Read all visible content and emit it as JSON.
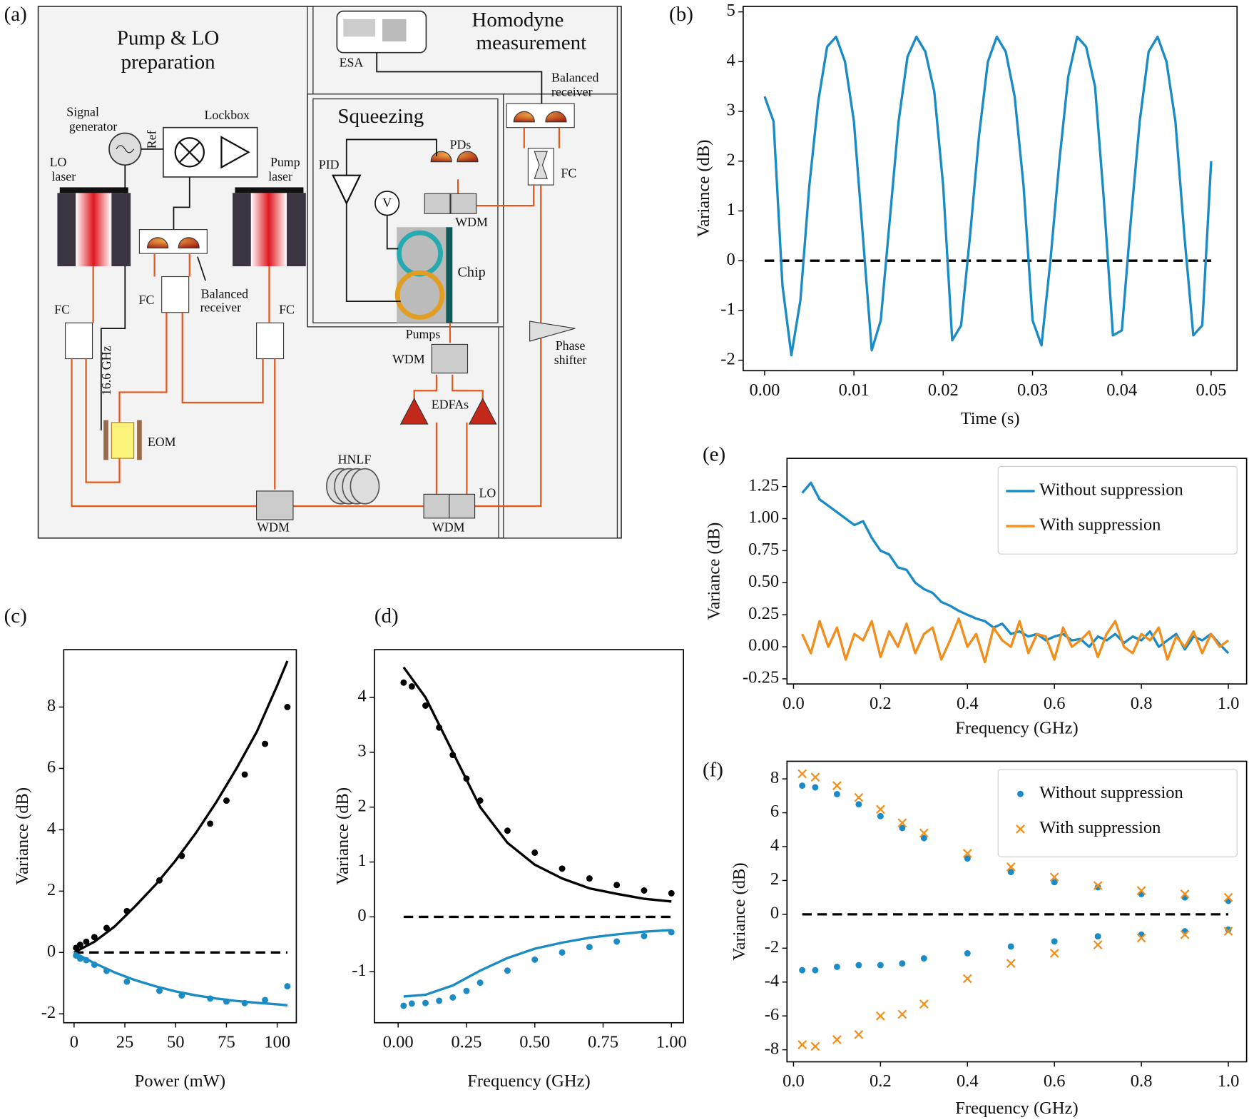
{
  "diagram": {
    "panel": "(a)",
    "labels": [
      "Pump & LO",
      "preparation",
      "Homodyne",
      "measurement",
      "ESA",
      "Balanced",
      "receiver",
      "Squeezing",
      "PDs",
      "PID",
      "V",
      "WDM",
      "Chip",
      "FC",
      "Signal",
      "generator",
      "Lockbox",
      "Ref",
      "LO",
      "laser",
      "Pump",
      "laser",
      "Balanced",
      "receiver",
      "FC",
      "FC",
      "FC",
      "16.6 GHz",
      "EOM",
      "HNLF",
      "Pumps",
      "WDM",
      "EDFAs",
      "Phase",
      "shifter",
      "LO",
      "WDM",
      "WDM"
    ]
  },
  "chart_data": [
    {
      "type": "line",
      "panel": "(b)",
      "x_label": "Time (s)",
      "y_label": "Variance (dB)",
      "x": [
        0,
        0.001,
        0.002,
        0.003,
        0.004,
        0.005,
        0.006,
        0.007,
        0.008,
        0.009,
        0.01,
        0.011,
        0.012,
        0.013,
        0.014,
        0.015,
        0.016,
        0.017,
        0.018,
        0.019,
        0.02,
        0.021,
        0.022,
        0.023,
        0.024,
        0.025,
        0.026,
        0.027,
        0.028,
        0.029,
        0.03,
        0.031,
        0.032,
        0.033,
        0.034,
        0.035,
        0.036,
        0.037,
        0.038,
        0.039,
        0.04,
        0.041,
        0.042,
        0.043,
        0.044,
        0.045,
        0.046,
        0.047,
        0.048,
        0.049,
        0.05
      ],
      "series": [
        {
          "color": "#1a8bc4",
          "style": "line",
          "values": [
            3.3,
            2.8,
            -0.5,
            -1.9,
            -0.8,
            1.5,
            3.2,
            4.3,
            4.5,
            4.0,
            2.8,
            0.5,
            -1.8,
            -1.2,
            0.8,
            2.8,
            4.1,
            4.5,
            4.2,
            3.4,
            1.5,
            -1.6,
            -1.3,
            0.5,
            2.5,
            4.0,
            4.5,
            4.2,
            3.3,
            1.5,
            -1.2,
            -1.7,
            0.0,
            2.0,
            3.7,
            4.5,
            4.3,
            3.5,
            1.2,
            -1.5,
            -1.4,
            0.8,
            2.8,
            4.2,
            4.5,
            4.0,
            2.8,
            0.5,
            -1.5,
            -1.3,
            2.0
          ]
        }
      ],
      "hline": 0,
      "xlim": [
        -0.0024,
        0.0529
      ],
      "ylim": [
        -2.21,
        5.11
      ],
      "xticks": [
        {
          "value": 0,
          "label": "0.00"
        },
        0.01,
        0.02,
        0.03,
        0.04,
        0.05
      ],
      "yticks": [
        -2,
        -1,
        0,
        1,
        2,
        3,
        4,
        5
      ]
    },
    {
      "type": "line",
      "panel": "(c)",
      "x_label": "Power (mW)",
      "y_label": "Variance (dB)",
      "series": [
        {
          "color": "#000000",
          "style": "line",
          "x": [
            0,
            10,
            20,
            30,
            40,
            50,
            60,
            70,
            80,
            90,
            100,
            105
          ],
          "values": [
            0,
            0.35,
            0.85,
            1.5,
            2.2,
            3.0,
            3.9,
            4.9,
            6.0,
            7.2,
            8.7,
            9.5
          ]
        },
        {
          "color": "#1a8bc4",
          "style": "line",
          "x": [
            0,
            10,
            20,
            30,
            40,
            50,
            60,
            70,
            80,
            90,
            100,
            105
          ],
          "values": [
            0,
            -0.35,
            -0.65,
            -0.9,
            -1.1,
            -1.27,
            -1.4,
            -1.5,
            -1.58,
            -1.64,
            -1.69,
            -1.72
          ]
        },
        {
          "color": "#000000",
          "style": "dots",
          "x": [
            1,
            3,
            6,
            10,
            16,
            26,
            42,
            53,
            67,
            75,
            84,
            94,
            105
          ],
          "values": [
            0.15,
            0.25,
            0.35,
            0.5,
            0.8,
            1.35,
            2.35,
            3.15,
            4.2,
            4.95,
            5.8,
            6.8,
            8.0
          ]
        },
        {
          "color": "#1a8bc4",
          "style": "dots",
          "x": [
            1,
            3,
            6,
            10,
            16,
            26,
            42,
            53,
            67,
            75,
            84,
            94,
            105
          ],
          "values": [
            -0.1,
            -0.2,
            -0.25,
            -0.4,
            -0.6,
            -0.95,
            -1.25,
            -1.4,
            -1.5,
            -1.6,
            -1.65,
            -1.55,
            -1.1
          ]
        }
      ],
      "hline": 0,
      "xlim": [
        -5.1,
        109.4
      ],
      "ylim": [
        -2.29,
        9.87
      ],
      "xticks": [
        0,
        25,
        50,
        75,
        100
      ],
      "yticks": [
        -2,
        0,
        2,
        4,
        6,
        8
      ]
    },
    {
      "type": "line",
      "panel": "(d)",
      "x_label": "Frequency (GHz)",
      "y_label": "Variance (dB)",
      "series": [
        {
          "color": "#000000",
          "style": "line",
          "x": [
            0.02,
            0.1,
            0.2,
            0.3,
            0.4,
            0.5,
            0.6,
            0.7,
            0.8,
            0.9,
            1.0
          ],
          "values": [
            4.55,
            4.0,
            3.0,
            2.0,
            1.35,
            0.95,
            0.7,
            0.52,
            0.42,
            0.33,
            0.28
          ]
        },
        {
          "color": "#1a8bc4",
          "style": "line",
          "x": [
            0.02,
            0.1,
            0.2,
            0.3,
            0.4,
            0.5,
            0.6,
            0.7,
            0.8,
            0.9,
            1.0
          ],
          "values": [
            -1.45,
            -1.42,
            -1.25,
            -0.98,
            -0.75,
            -0.58,
            -0.47,
            -0.38,
            -0.32,
            -0.27,
            -0.24
          ]
        },
        {
          "color": "#000000",
          "style": "dots",
          "x": [
            0.02,
            0.05,
            0.1,
            0.15,
            0.2,
            0.25,
            0.3,
            0.4,
            0.5,
            0.6,
            0.7,
            0.8,
            0.9,
            1.0
          ],
          "values": [
            4.27,
            4.2,
            3.85,
            3.45,
            2.95,
            2.52,
            2.12,
            1.57,
            1.17,
            0.88,
            0.7,
            0.58,
            0.48,
            0.43
          ]
        },
        {
          "color": "#1a8bc4",
          "style": "dots",
          "x": [
            0.02,
            0.05,
            0.1,
            0.15,
            0.2,
            0.25,
            0.3,
            0.4,
            0.5,
            0.6,
            0.7,
            0.8,
            0.9,
            1.0
          ],
          "values": [
            -1.62,
            -1.58,
            -1.57,
            -1.53,
            -1.47,
            -1.35,
            -1.2,
            -0.98,
            -0.78,
            -0.65,
            -0.55,
            -0.45,
            -0.35,
            -0.28
          ]
        }
      ],
      "hline": 0,
      "xlim": [
        -0.087,
        1.044
      ],
      "ylim": [
        -1.93,
        4.87
      ],
      "xticks": [
        {
          "value": 0,
          "label": "0.00"
        },
        0.25,
        {
          "value": 0.5,
          "label": "0.50"
        },
        0.75,
        {
          "value": 1,
          "label": "1.00"
        }
      ],
      "yticks": [
        -1,
        0,
        1,
        2,
        3,
        4
      ]
    },
    {
      "type": "line",
      "panel": "(e)",
      "x_label": "Frequency (GHz)",
      "y_label": "Variance (dB)",
      "legend": "upper right",
      "x": [
        0.02,
        0.04,
        0.06,
        0.08,
        0.1,
        0.12,
        0.14,
        0.16,
        0.18,
        0.2,
        0.22,
        0.24,
        0.26,
        0.28,
        0.3,
        0.32,
        0.34,
        0.36,
        0.38,
        0.4,
        0.42,
        0.44,
        0.46,
        0.48,
        0.5,
        0.52,
        0.54,
        0.56,
        0.58,
        0.6,
        0.62,
        0.64,
        0.66,
        0.68,
        0.7,
        0.72,
        0.74,
        0.76,
        0.78,
        0.8,
        0.82,
        0.84,
        0.86,
        0.88,
        0.9,
        0.92,
        0.94,
        0.96,
        0.98,
        1.0
      ],
      "series": [
        {
          "name": "Without suppression",
          "color": "#1a8bc4",
          "style": "line",
          "values": [
            1.2,
            1.28,
            1.15,
            1.1,
            1.05,
            1.0,
            0.95,
            0.98,
            0.85,
            0.75,
            0.72,
            0.62,
            0.6,
            0.5,
            0.45,
            0.42,
            0.35,
            0.32,
            0.28,
            0.25,
            0.22,
            0.2,
            0.15,
            0.18,
            0.1,
            0.12,
            0.08,
            0.1,
            0.05,
            0.08,
            0.1,
            0.05,
            0.06,
            0.0,
            0.08,
            0.05,
            0.1,
            0.03,
            0.08,
            0.05,
            0.12,
            0.0,
            0.05,
            0.1,
            -0.02,
            0.08,
            0.05,
            0.1,
            0.02,
            -0.05
          ]
        },
        {
          "name": "With suppression",
          "color": "#f28e1c",
          "style": "line",
          "values": [
            0.1,
            -0.05,
            0.2,
            0.0,
            0.15,
            -0.1,
            0.1,
            0.05,
            0.2,
            -0.08,
            0.12,
            0.0,
            0.18,
            -0.05,
            0.1,
            0.15,
            -0.1,
            0.05,
            0.22,
            0.0,
            0.1,
            -0.12,
            0.15,
            0.05,
            0.0,
            0.2,
            -0.05,
            0.1,
            0.08,
            -0.1,
            0.15,
            0.0,
            0.05,
            0.12,
            -0.08,
            0.1,
            0.2,
            0.0,
            -0.05,
            0.1,
            0.05,
            0.15,
            -0.1,
            0.08,
            0.0,
            0.12,
            -0.05,
            0.1,
            0.0,
            0.05
          ]
        }
      ],
      "xlim": [
        -0.015,
        1.042
      ],
      "ylim": [
        -0.29,
        1.47
      ],
      "xticks": [
        {
          "value": 0,
          "label": "0.0"
        },
        0.2,
        0.4,
        0.6,
        0.8,
        {
          "value": 1,
          "label": "1.0"
        }
      ],
      "yticks": [
        -0.25,
        {
          "value": 0,
          "label": "0.00"
        },
        0.25,
        {
          "value": 0.5,
          "label": "0.50"
        },
        0.75,
        {
          "value": 1,
          "label": "1.00"
        },
        1.25
      ]
    },
    {
      "type": "scatter",
      "panel": "(f)",
      "x_label": "Frequency (GHz)",
      "y_label": "Variance (dB)",
      "legend": "upper right",
      "x": [
        0.02,
        0.05,
        0.1,
        0.15,
        0.2,
        0.25,
        0.3,
        0.4,
        0.5,
        0.6,
        0.7,
        0.8,
        0.9,
        1.0
      ],
      "series": [
        {
          "name": "Without suppression",
          "color": "#1a8bc4",
          "style": "dots",
          "values": [
            7.6,
            7.5,
            7.1,
            6.5,
            5.8,
            5.1,
            4.5,
            3.3,
            2.5,
            1.9,
            1.6,
            1.2,
            1.0,
            0.8
          ],
          "values_low": [
            -3.3,
            -3.3,
            -3.1,
            -3.0,
            -3.0,
            -2.9,
            -2.6,
            -2.3,
            -1.9,
            -1.6,
            -1.3,
            -1.2,
            -1.0,
            -0.9
          ]
        },
        {
          "name": "With suppression",
          "color": "#f28e1c",
          "style": "cross",
          "values": [
            8.3,
            8.1,
            7.6,
            6.9,
            6.2,
            5.4,
            4.8,
            3.6,
            2.8,
            2.2,
            1.7,
            1.4,
            1.2,
            1.0
          ],
          "values_low": [
            -7.7,
            -7.8,
            -7.4,
            -7.1,
            -6.0,
            -5.9,
            -5.3,
            -3.8,
            -2.9,
            -2.3,
            -1.8,
            -1.4,
            -1.2,
            -1.0
          ]
        }
      ],
      "hline": 0,
      "xlim": [
        -0.015,
        1.042
      ],
      "ylim": [
        -8.71,
        9.04
      ],
      "xticks": [
        {
          "value": 0,
          "label": "0.0"
        },
        0.2,
        0.4,
        0.6,
        0.8,
        {
          "value": 1,
          "label": "1.0"
        }
      ],
      "yticks": [
        -8,
        -6,
        -4,
        -2,
        0,
        2,
        4,
        6,
        8
      ]
    }
  ]
}
